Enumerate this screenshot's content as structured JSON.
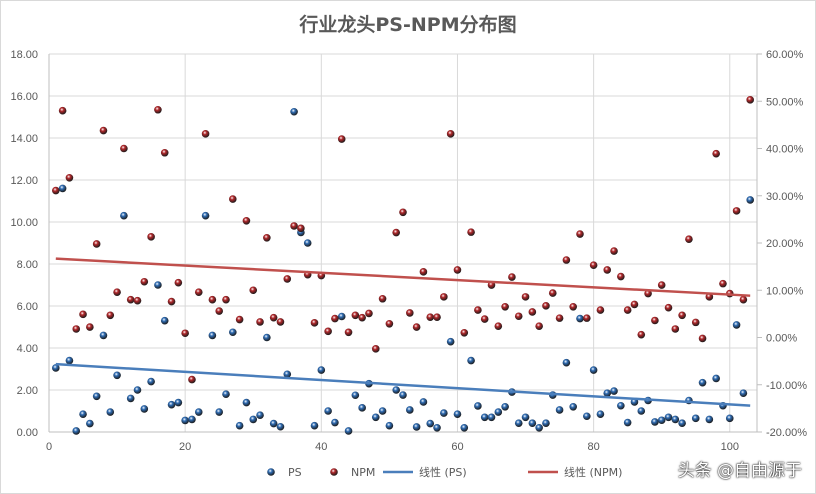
{
  "chart_data": {
    "type": "scatter",
    "title": "行业龙头PS-NPM分布图",
    "x": [
      1,
      2,
      3,
      4,
      5,
      6,
      7,
      8,
      9,
      10,
      11,
      12,
      13,
      14,
      15,
      16,
      17,
      18,
      19,
      20,
      21,
      22,
      23,
      24,
      25,
      26,
      27,
      28,
      29,
      30,
      31,
      32,
      33,
      34,
      35,
      36,
      37,
      38,
      39,
      40,
      41,
      42,
      43,
      44,
      45,
      46,
      47,
      48,
      49,
      50,
      51,
      52,
      53,
      54,
      55,
      56,
      57,
      58,
      59,
      60,
      61,
      62,
      63,
      64,
      65,
      66,
      67,
      68,
      69,
      70,
      71,
      72,
      73,
      74,
      75,
      76,
      77,
      78,
      79,
      80,
      81,
      82,
      83,
      84,
      85,
      86,
      87,
      88,
      89,
      90,
      91,
      92,
      93,
      94,
      95,
      96,
      97,
      98,
      99,
      100,
      101,
      102,
      103
    ],
    "xlim": [
      0,
      104
    ],
    "x_ticks": [
      "0",
      "20",
      "40",
      "60",
      "80",
      "100"
    ],
    "x_tick_values": [
      0,
      20,
      40,
      60,
      80,
      100
    ],
    "y_left": {
      "lim": [
        0,
        18
      ],
      "ticks": [
        "0.00",
        "2.00",
        "4.00",
        "6.00",
        "8.00",
        "10.00",
        "12.00",
        "14.00",
        "16.00",
        "18.00"
      ]
    },
    "y_right": {
      "lim": [
        -20,
        60
      ],
      "unit": "%",
      "ticks": [
        "-20.00%",
        "-10.00%",
        "0.00%",
        "10.00%",
        "20.00%",
        "30.00%",
        "40.00%",
        "50.00%",
        "60.00%"
      ]
    },
    "grid": true,
    "legend_position": "bottom",
    "series": [
      {
        "name": "PS",
        "axis": "left",
        "color": "#2f6db5",
        "values": [
          3.05,
          11.6,
          3.4,
          0.05,
          0.85,
          0.4,
          1.7,
          4.6,
          0.95,
          2.7,
          10.3,
          1.6,
          2.0,
          1.1,
          2.4,
          7.0,
          5.3,
          1.3,
          1.4,
          0.55,
          0.6,
          0.95,
          10.3,
          4.6,
          0.95,
          1.8,
          4.75,
          0.3,
          1.4,
          0.6,
          0.8,
          4.5,
          0.4,
          0.25,
          2.75,
          15.25,
          9.5,
          9.0,
          0.3,
          2.95,
          1.0,
          0.45,
          5.5,
          0.05,
          1.75,
          1.15,
          2.3,
          0.7,
          1.0,
          0.3,
          2.0,
          1.76,
          1.05,
          0.24,
          1.43,
          0.4,
          0.2,
          0.9,
          4.3,
          0.85,
          0.2,
          3.4,
          1.24,
          0.7,
          0.7,
          0.95,
          1.2,
          1.9,
          0.42,
          0.7,
          0.42,
          0.2,
          0.42,
          1.76,
          1.05,
          3.3,
          1.2,
          5.4,
          0.75,
          2.95,
          0.85,
          1.85,
          1.95,
          1.25,
          0.45,
          1.43,
          1.0,
          1.5,
          0.48,
          0.56,
          0.7,
          0.6,
          0.42,
          1.5,
          0.65,
          2.35,
          0.6,
          2.55,
          1.25,
          0.65,
          5.1,
          1.85,
          11.05
        ]
      },
      {
        "name": "NPM",
        "axis": "right",
        "color": "#b3282b",
        "values": [
          31.1,
          48.0,
          33.8,
          1.8,
          4.9,
          2.2,
          19.8,
          43.8,
          4.7,
          9.6,
          40.0,
          8.0,
          7.8,
          11.8,
          21.3,
          48.2,
          39.1,
          7.6,
          11.6,
          0.9,
          -8.9,
          9.6,
          43.1,
          8.0,
          5.6,
          8.0,
          29.3,
          3.8,
          24.7,
          10.0,
          3.3,
          21.1,
          4.2,
          3.3,
          12.4,
          23.6,
          23.1,
          13.3,
          3.1,
          13.1,
          1.3,
          4.0,
          42.0,
          1.1,
          4.7,
          4.2,
          5.1,
          -2.4,
          8.2,
          2.9,
          22.2,
          26.5,
          5.2,
          2.2,
          13.9,
          4.3,
          4.3,
          8.6,
          43.1,
          14.3,
          1.0,
          22.3,
          5.8,
          3.9,
          11.1,
          2.4,
          6.5,
          12.8,
          4.5,
          8.6,
          5.4,
          2.4,
          6.7,
          9.4,
          4.1,
          16.4,
          6.5,
          21.9,
          4.1,
          15.3,
          5.8,
          14.3,
          18.3,
          12.9,
          5.8,
          7.0,
          0.6,
          9.3,
          3.6,
          11.1,
          6.3,
          1.8,
          4.7,
          20.8,
          3.2,
          -0.2,
          8.6,
          38.9,
          11.4,
          9.3,
          26.8,
          8.0,
          50.3
        ]
      }
    ],
    "trendlines": [
      {
        "name": "线性 (PS)",
        "of": "PS",
        "type": "linear",
        "color": "#4a7ebb"
      },
      {
        "name": "线性 (NPM)",
        "of": "NPM",
        "type": "linear",
        "color": "#c0504d"
      }
    ]
  },
  "watermark": "头条 @自由源于"
}
